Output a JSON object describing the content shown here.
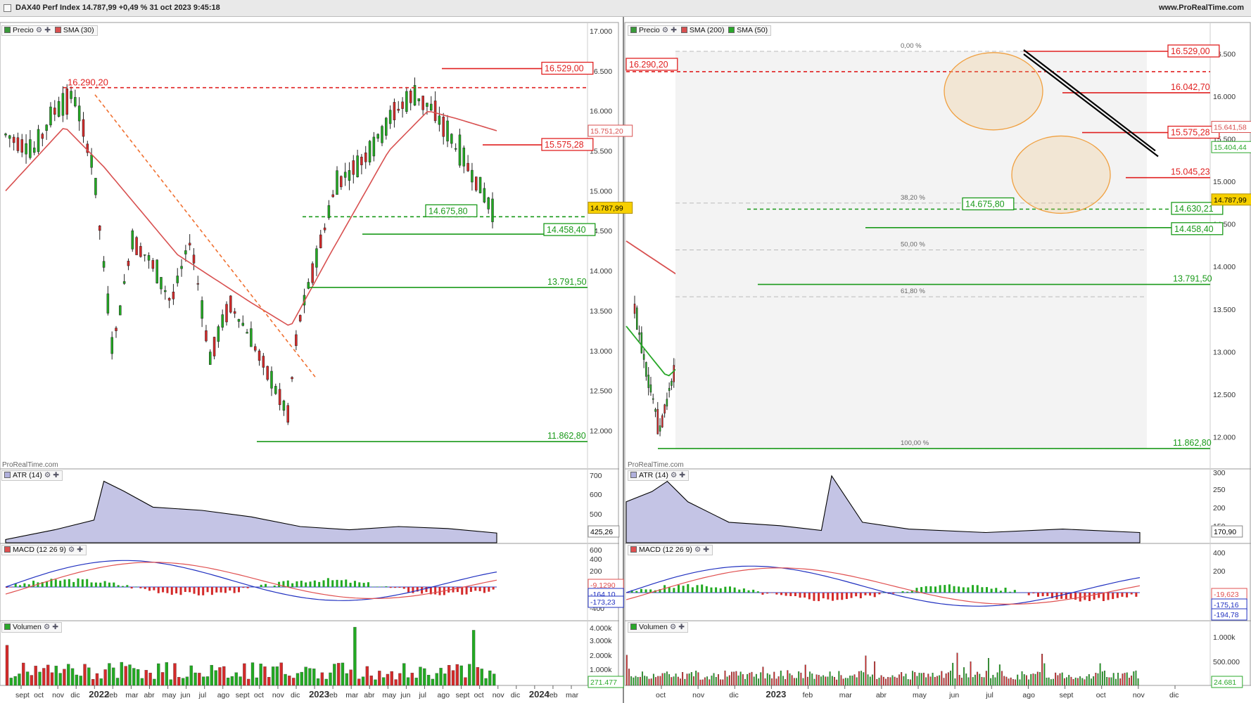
{
  "window": {
    "title": "DAX40 Perf Index 14.787,99 +0,49 % 31 oct 2023 9:45:18",
    "site": "www.ProRealTime.com",
    "watermark": "ProRealTime.com"
  },
  "colors": {
    "up": "#22aa22",
    "down": "#d42a2a",
    "red_line": "#e02020",
    "green_line": "#1a9a1a",
    "sma30": "#d85050",
    "sma200": "#d85050",
    "sma50": "#2aa82a",
    "fib": "#f07030",
    "osc_fill": "#b0b0dc",
    "macd_line": "#2030c0",
    "signal_line": "#e05050"
  },
  "left": {
    "legends": {
      "price": {
        "label": "Precio",
        "sma": "SMA (30)"
      },
      "atr": "ATR (14)",
      "macd": "MACD (12 26 9)",
      "volume": "Volumen"
    },
    "price_ticks": [
      "17.000",
      "16.500",
      "16.000",
      "15.500",
      "15.000",
      "14.500",
      "14.000",
      "13.500",
      "13.000",
      "12.500",
      "12.000"
    ],
    "level_labels": [
      "16.529,00",
      "16.290,20",
      "15.575,28",
      "14.675,80",
      "14.458,40",
      "13.791,50",
      "11.862,80"
    ],
    "value_tags": {
      "sma": "15.751,20",
      "last": "14.787,99",
      "atr": "425,26",
      "macd1": "-9,1290",
      "macd2": "-164,10",
      "macd3": "-173,23",
      "vol": "271.477"
    },
    "atr_ticks": [
      "700",
      "600",
      "500"
    ],
    "macd_ticks": [
      "600",
      "400",
      "200",
      "-200",
      "-400"
    ],
    "vol_ticks": [
      "4.000k",
      "3.000k",
      "2.000k",
      "1.000k"
    ],
    "x_labels": [
      "sept",
      "oct",
      "nov",
      "dic",
      "2022",
      "feb",
      "mar",
      "abr",
      "may",
      "jun",
      "jul",
      "ago",
      "sept",
      "oct",
      "nov",
      "dic",
      "2023",
      "feb",
      "mar",
      "abr",
      "may",
      "jun",
      "jul",
      "ago",
      "sept",
      "oct",
      "nov",
      "dic",
      "2024",
      "feb",
      "mar"
    ]
  },
  "right": {
    "legends": {
      "price": {
        "label": "Precio",
        "sma200": "SMA (200)",
        "sma50": "SMA (50)"
      },
      "atr": "ATR (14)",
      "macd": "MACD (12 26 9)",
      "volume": "Volumen"
    },
    "price_ticks": [
      "16.500",
      "16.000",
      "15.500",
      "15.000",
      "14.500",
      "14.000",
      "13.500",
      "13.000",
      "12.500",
      "12.000"
    ],
    "level_labels": [
      "16.529,00",
      "16.290,20",
      "16.042,70",
      "15.575,28",
      "15.045,23",
      "14.675,80",
      "14.630,21",
      "14.458,40",
      "13.791,50",
      "11.862,80"
    ],
    "fib_labels": [
      "0,00 %",
      "38,20 %",
      "50,00 %",
      "61,80 %",
      "100,00 %"
    ],
    "value_tags": {
      "sma200": "15.641,58",
      "sma50": "15.404,44",
      "last": "14.787,99",
      "atr": "170,90",
      "macd1": "-19,623",
      "macd2": "-175,16",
      "macd3": "-194,78",
      "vol": "24.681"
    },
    "atr_ticks": [
      "300",
      "250",
      "200",
      "150"
    ],
    "macd_ticks": [
      "400",
      "200",
      "-200",
      "-400"
    ],
    "vol_ticks": [
      "1.000k",
      "500.000"
    ],
    "x_labels": [
      "oct",
      "nov",
      "dic",
      "2023",
      "feb",
      "mar",
      "abr",
      "may",
      "jun",
      "jul",
      "ago",
      "sept",
      "oct",
      "nov",
      "dic"
    ]
  }
}
